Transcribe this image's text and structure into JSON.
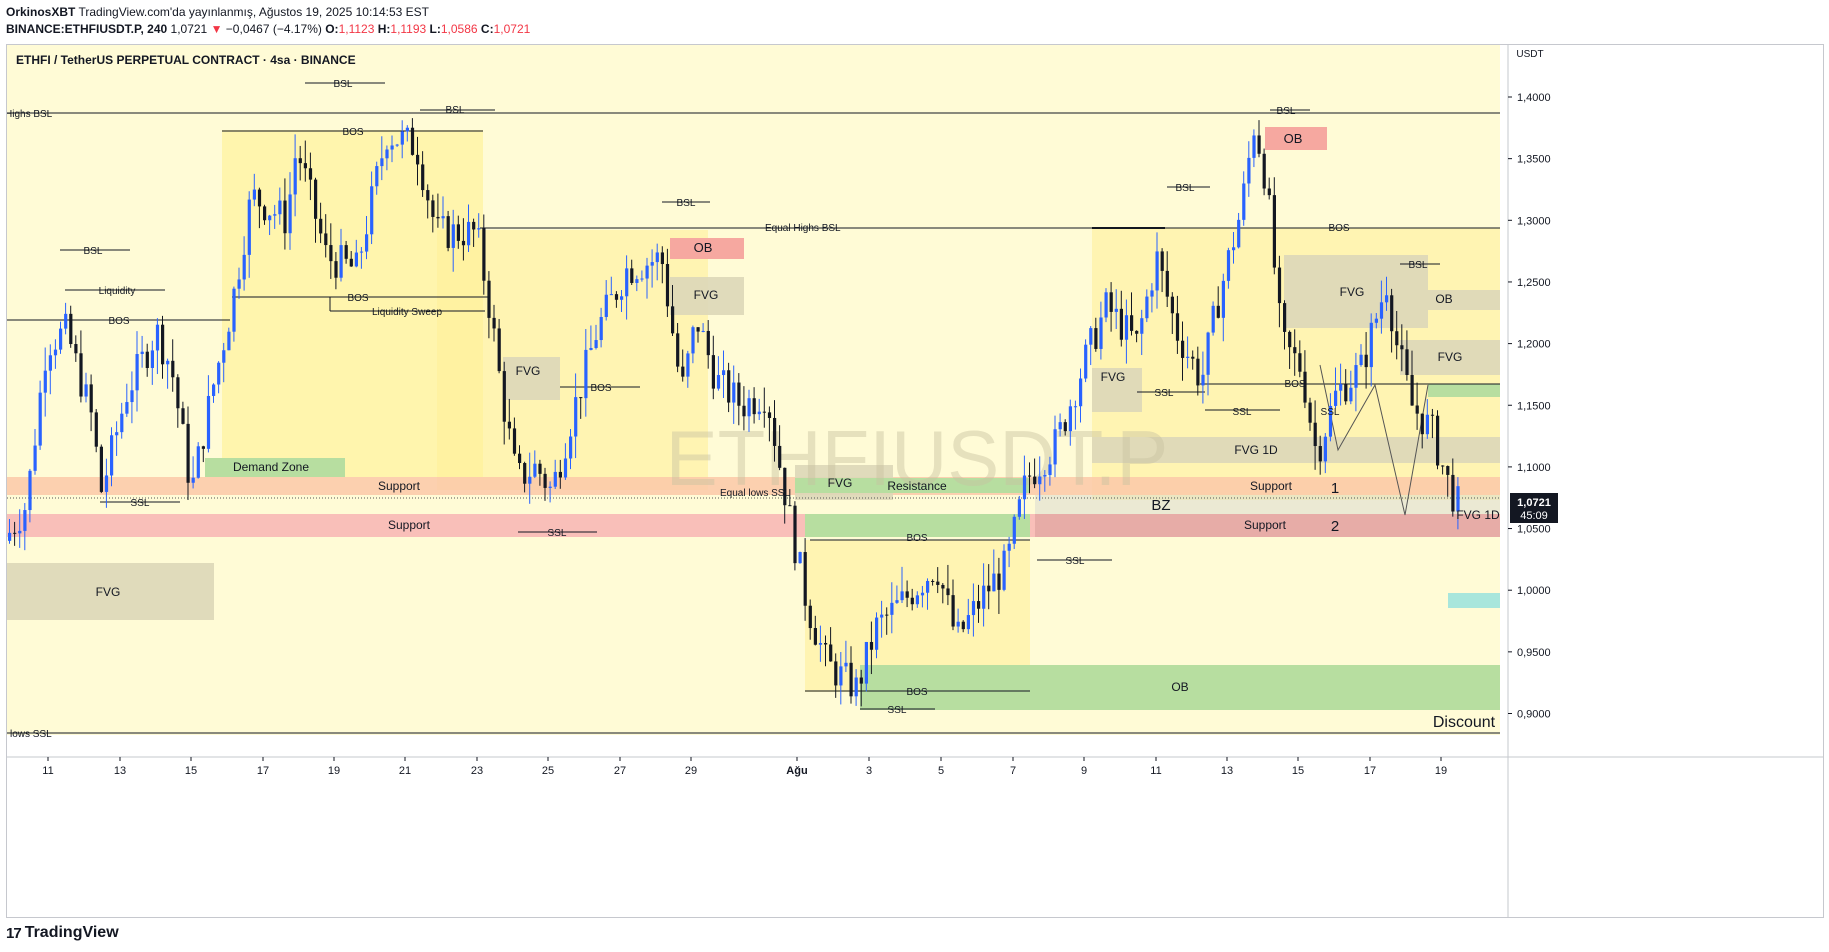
{
  "header": {
    "author": "OrkinosXBT",
    "published": "TradingView.com'da yayınlanmış, Ağustos 19, 2025 10:14:53 EST",
    "symbol": "BINANCE:ETHFIUSDT.P",
    "interval": "240",
    "last": "1,0721",
    "change": "−0,0467 (−4.17%)",
    "o_label": "O:",
    "o": "1,1123",
    "h_label": "H:",
    "h": "1,1193",
    "l_label": "L:",
    "l": "1,0586",
    "c_label": "C:",
    "c": "1,0721"
  },
  "chart": {
    "title": "ETHFI / TetherUS PERPETUAL CONTRACT · 4sa · BINANCE",
    "watermark": "ETHFIUSDT.P",
    "currency": "USDT",
    "price_ticks": [
      "1,4000",
      "1,3500",
      "1,3000",
      "1,2500",
      "1,2000",
      "1,1500",
      "1,1000",
      "1,0500",
      "1,0000",
      "0,9500",
      "0,9000"
    ],
    "last_price": "1,0721",
    "countdown": "45:09",
    "time_ticks": [
      "11",
      "13",
      "15",
      "17",
      "19",
      "21",
      "23",
      "25",
      "27",
      "29",
      "Ağu",
      "3",
      "5",
      "7",
      "9",
      "11",
      "13",
      "15",
      "17",
      "19"
    ],
    "annotations": {
      "highs_bsl": "Highs BSL",
      "lows_ssl": "l lows SSL",
      "equal_highs": "Equal Highs BSL",
      "equal_lows": "Equal lows SSL",
      "bsl": "BSL",
      "ssl": "SSL",
      "bos": "BOS",
      "liquidity": "Liquidity",
      "liquidity_sweep": "Liquidity Sweep",
      "fvg": "FVG",
      "fvg_1d": "FVG 1D",
      "ob": "OB",
      "demand_zone": "Demand Zone",
      "support": "Support",
      "resistance": "Resistance",
      "bz": "BZ",
      "discount": "Discount",
      "one": "1",
      "two": "2"
    },
    "colors": {
      "bull": "#2962ff",
      "bear": "#131722",
      "yellow_zone": "#fff9c4",
      "support_red": "#f8b4b4",
      "support_orange": "#fcc8a8",
      "green_zone": "#b7dea0",
      "gray_zone": "#ddd7b8",
      "ob_red": "#f6b0a8"
    }
  },
  "chart_data": {
    "type": "candlestick",
    "x_start": "10 Tem 2025",
    "interval": "4h",
    "ylim": [
      0.88,
      1.43
    ],
    "candles": []
  },
  "footer": {
    "brand": "TradingView",
    "logo": "17"
  }
}
